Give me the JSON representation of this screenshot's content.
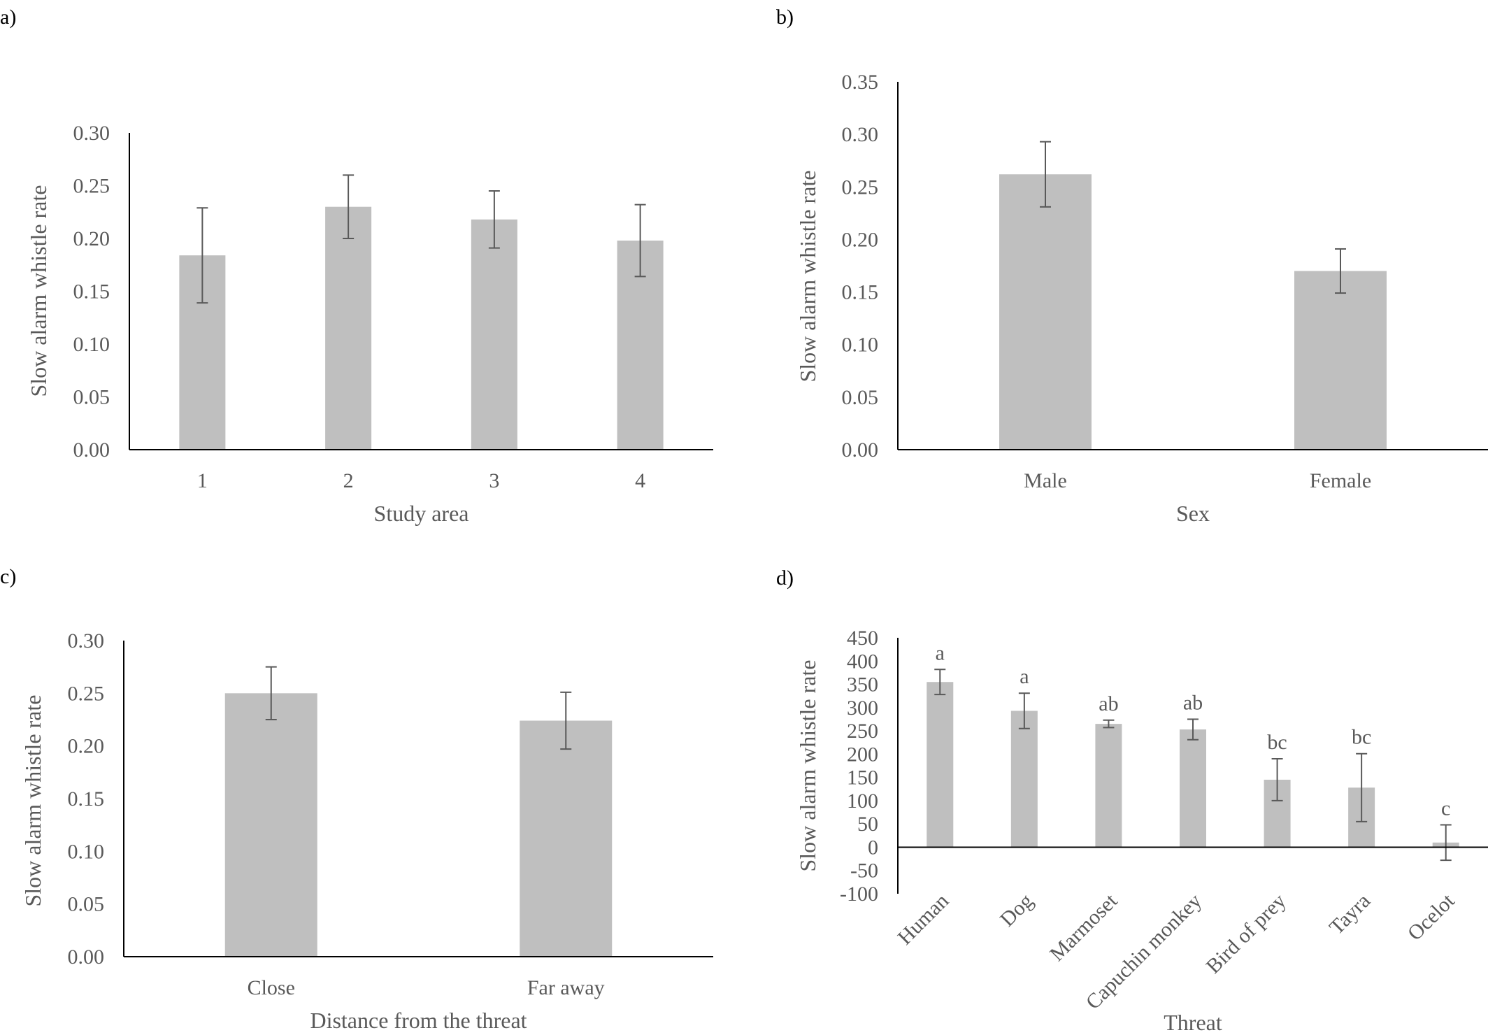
{
  "chart_data": [
    {
      "panel": "a)",
      "type": "bar",
      "categories": [
        "1",
        "2",
        "3",
        "4"
      ],
      "values": [
        0.184,
        0.23,
        0.218,
        0.198
      ],
      "errors": [
        0.045,
        0.03,
        0.027,
        0.034
      ],
      "xlabel": "Study area",
      "ylabel": "Slow alarm whistle  rate",
      "ylim": [
        0,
        0.3
      ],
      "yticks": [
        "0.00",
        "0.05",
        "0.10",
        "0.15",
        "0.20",
        "0.25",
        "0.30"
      ]
    },
    {
      "panel": "b)",
      "type": "bar",
      "categories": [
        "Male",
        "Female"
      ],
      "values": [
        0.262,
        0.17
      ],
      "errors": [
        0.031,
        0.021
      ],
      "xlabel": "Sex",
      "ylabel": "Slow alarm whistle rate",
      "ylim": [
        0,
        0.35
      ],
      "yticks": [
        "0.00",
        "0.05",
        "0.10",
        "0.15",
        "0.20",
        "0.25",
        "0.30",
        "0.35"
      ]
    },
    {
      "panel": "c)",
      "type": "bar",
      "categories": [
        "Close",
        "Far away"
      ],
      "values": [
        0.25,
        0.224
      ],
      "errors": [
        0.025,
        0.027
      ],
      "xlabel": "Distance from the threat",
      "ylabel": "Slow alarm whistle rate",
      "ylim": [
        0,
        0.3
      ],
      "yticks": [
        "0.00",
        "0.05",
        "0.10",
        "0.15",
        "0.20",
        "0.25",
        "0.30"
      ]
    },
    {
      "panel": "d)",
      "type": "bar",
      "categories": [
        "Human",
        "Dog",
        "Marmoset",
        "Capuchin monkey",
        "Bird of prey",
        "Tayra",
        "Ocelot"
      ],
      "values": [
        355,
        293,
        265,
        253,
        145,
        128,
        10
      ],
      "errors": [
        27,
        38,
        8,
        22,
        45,
        73,
        38
      ],
      "significance": [
        "a",
        "a",
        "ab",
        "ab",
        "bc",
        "bc",
        "c"
      ],
      "xlabel": "Threat",
      "ylabel": "Slow alarm whistle rate",
      "ylim": [
        -100,
        450
      ],
      "yticks": [
        "-100",
        "-50",
        "0",
        "50",
        "100",
        "150",
        "200",
        "250",
        "300",
        "350",
        "400",
        "450"
      ]
    }
  ]
}
